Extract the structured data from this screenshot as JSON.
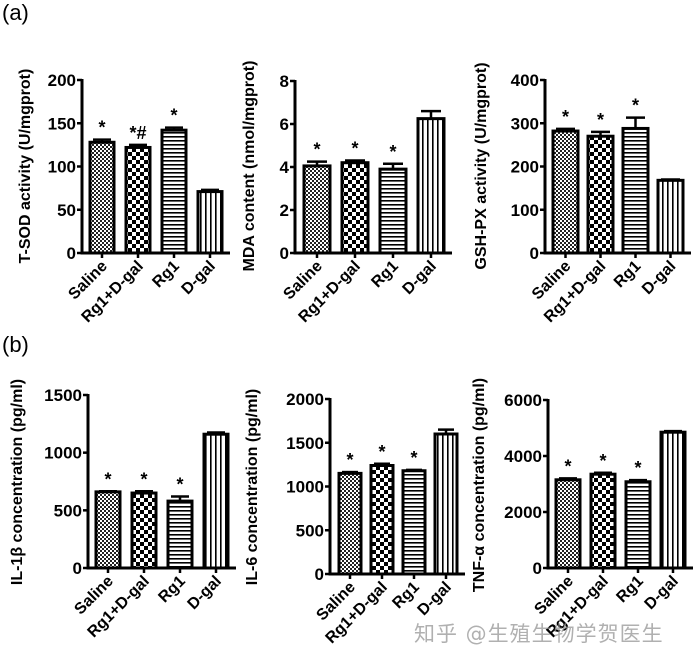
{
  "panels": {
    "a": "(a)",
    "b": "(b)"
  },
  "watermark": "知乎 @生殖生物学贺医生",
  "colors": {
    "ink": "#000000",
    "background": "#ffffff",
    "watermark": "#969696"
  },
  "chart_data": [
    {
      "type": "bar",
      "panel": "a",
      "title": "",
      "ylabel": "T-SOD activity (U/mgprot)",
      "categories": [
        "Saline",
        "Rg1+D-gal",
        "Rg1",
        "D-gal"
      ],
      "values": [
        128,
        122,
        142,
        71
      ],
      "errors": [
        3,
        3,
        3,
        2
      ],
      "annotations": [
        "*",
        "*#",
        "*",
        ""
      ],
      "patterns": [
        "dense-checker",
        "checker",
        "horizontal-lines",
        "vertical-lines"
      ],
      "ylim": [
        0,
        200
      ],
      "yticks": [
        0,
        50,
        100,
        150,
        200
      ]
    },
    {
      "type": "bar",
      "panel": "a",
      "title": "",
      "ylabel": "MDA content (nmol/mgprot)",
      "categories": [
        "Saline",
        "Rg1+D-gal",
        "Rg1",
        "D-gal"
      ],
      "values": [
        4.05,
        4.2,
        3.9,
        6.25
      ],
      "errors": [
        0.2,
        0.1,
        0.25,
        0.35
      ],
      "annotations": [
        "*",
        "*",
        "*",
        ""
      ],
      "patterns": [
        "dense-checker",
        "checker",
        "horizontal-lines",
        "vertical-lines"
      ],
      "ylim": [
        0,
        8
      ],
      "yticks": [
        0,
        2,
        4,
        6,
        8
      ]
    },
    {
      "type": "bar",
      "panel": "a",
      "title": "",
      "ylabel": "GSH-PX activity (U/mgprot)",
      "categories": [
        "Saline",
        "Rg1+D-gal",
        "Rg1",
        "D-gal"
      ],
      "values": [
        282,
        270,
        288,
        168
      ],
      "errors": [
        5,
        10,
        25,
        2
      ],
      "annotations": [
        "*",
        "*",
        "*",
        ""
      ],
      "patterns": [
        "dense-checker",
        "checker",
        "horizontal-lines",
        "vertical-lines"
      ],
      "ylim": [
        0,
        400
      ],
      "yticks": [
        0,
        100,
        200,
        300,
        400
      ]
    },
    {
      "type": "bar",
      "panel": "b",
      "title": "",
      "ylabel": "IL-1β concentration (pg/ml)",
      "categories": [
        "Saline",
        "Rg1+D-gal",
        "Rg1",
        "D-gal"
      ],
      "values": [
        660,
        650,
        580,
        1160
      ],
      "errors": [
        5,
        15,
        40,
        15
      ],
      "annotations": [
        "*",
        "*",
        "*",
        ""
      ],
      "patterns": [
        "dense-checker",
        "checker",
        "horizontal-lines",
        "vertical-lines"
      ],
      "ylim": [
        0,
        1500
      ],
      "yticks": [
        0,
        500,
        1000,
        1500
      ]
    },
    {
      "type": "bar",
      "panel": "b",
      "title": "",
      "ylabel": "IL-6 concentration (pg/ml)",
      "categories": [
        "Saline",
        "Rg1+D-gal",
        "Rg1",
        "D-gal"
      ],
      "values": [
        1150,
        1240,
        1180,
        1600
      ],
      "errors": [
        15,
        20,
        10,
        50
      ],
      "annotations": [
        "*",
        "*",
        "*",
        ""
      ],
      "patterns": [
        "dense-checker",
        "checker",
        "horizontal-lines",
        "vertical-lines"
      ],
      "ylim": [
        0,
        2000
      ],
      "yticks": [
        0,
        500,
        1000,
        1500,
        2000
      ]
    },
    {
      "type": "bar",
      "panel": "b",
      "title": "",
      "ylabel": "TNF-α concentration (pg/ml)",
      "categories": [
        "Saline",
        "Rg1+D-gal",
        "Rg1",
        "D-gal"
      ],
      "values": [
        3150,
        3350,
        3080,
        4850
      ],
      "errors": [
        50,
        50,
        60,
        40
      ],
      "annotations": [
        "*",
        "*",
        "*",
        ""
      ],
      "patterns": [
        "dense-checker",
        "checker",
        "horizontal-lines",
        "vertical-lines"
      ],
      "ylim": [
        0,
        6000
      ],
      "yticks": [
        0,
        2000,
        4000,
        6000
      ]
    }
  ]
}
